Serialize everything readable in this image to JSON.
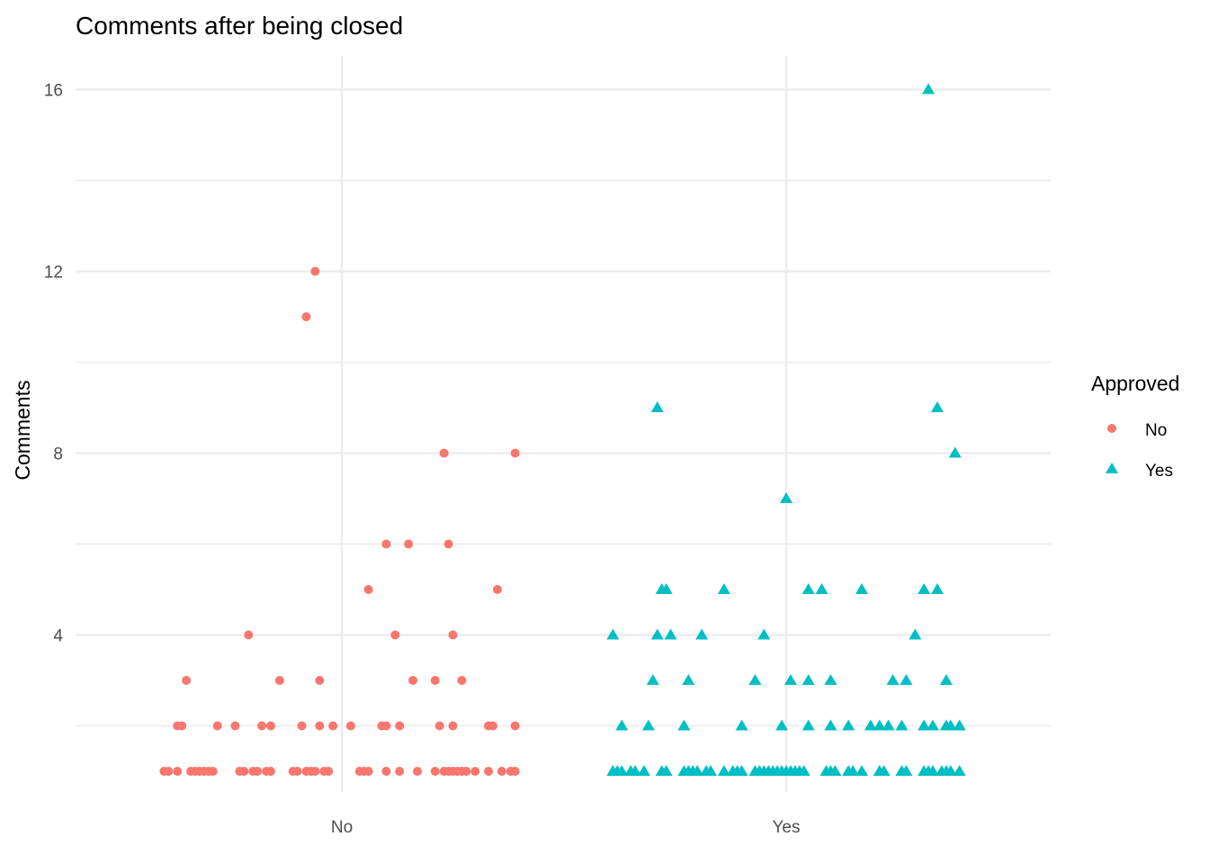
{
  "chart_data": {
    "type": "scatter",
    "title": "Comments after being closed",
    "xlabel": "",
    "ylabel": "Comments",
    "categories": [
      "No",
      "Yes"
    ],
    "ylim": [
      0,
      16.5
    ],
    "yticks": [
      4,
      8,
      12,
      16
    ],
    "grid": true,
    "legend": {
      "title": "Approved",
      "position": "right"
    },
    "series": [
      {
        "name": "No",
        "shape": "circle",
        "color": "#F8766D",
        "points": [
          {
            "x": -0.4,
            "y": 1
          },
          {
            "x": -0.39,
            "y": 1
          },
          {
            "x": -0.37,
            "y": 1
          },
          {
            "x": -0.34,
            "y": 1
          },
          {
            "x": -0.33,
            "y": 1
          },
          {
            "x": -0.32,
            "y": 1
          },
          {
            "x": -0.31,
            "y": 1
          },
          {
            "x": -0.3,
            "y": 1
          },
          {
            "x": -0.29,
            "y": 1
          },
          {
            "x": -0.23,
            "y": 1
          },
          {
            "x": -0.22,
            "y": 1
          },
          {
            "x": -0.2,
            "y": 1
          },
          {
            "x": -0.19,
            "y": 1
          },
          {
            "x": -0.17,
            "y": 1
          },
          {
            "x": -0.16,
            "y": 1
          },
          {
            "x": -0.11,
            "y": 1
          },
          {
            "x": -0.1,
            "y": 1
          },
          {
            "x": -0.08,
            "y": 1
          },
          {
            "x": -0.07,
            "y": 1
          },
          {
            "x": -0.06,
            "y": 1
          },
          {
            "x": -0.04,
            "y": 1
          },
          {
            "x": -0.03,
            "y": 1
          },
          {
            "x": 0.04,
            "y": 1
          },
          {
            "x": 0.05,
            "y": 1
          },
          {
            "x": 0.06,
            "y": 1
          },
          {
            "x": 0.1,
            "y": 1
          },
          {
            "x": 0.13,
            "y": 1
          },
          {
            "x": 0.17,
            "y": 1
          },
          {
            "x": 0.21,
            "y": 1
          },
          {
            "x": 0.23,
            "y": 1
          },
          {
            "x": 0.24,
            "y": 1
          },
          {
            "x": 0.25,
            "y": 1
          },
          {
            "x": 0.26,
            "y": 1
          },
          {
            "x": 0.27,
            "y": 1
          },
          {
            "x": 0.28,
            "y": 1
          },
          {
            "x": 0.3,
            "y": 1
          },
          {
            "x": 0.33,
            "y": 1
          },
          {
            "x": 0.36,
            "y": 1
          },
          {
            "x": 0.38,
            "y": 1
          },
          {
            "x": 0.39,
            "y": 1
          },
          {
            "x": -0.37,
            "y": 2
          },
          {
            "x": -0.36,
            "y": 2
          },
          {
            "x": -0.28,
            "y": 2
          },
          {
            "x": -0.24,
            "y": 2
          },
          {
            "x": -0.18,
            "y": 2
          },
          {
            "x": -0.16,
            "y": 2
          },
          {
            "x": -0.09,
            "y": 2
          },
          {
            "x": -0.05,
            "y": 2
          },
          {
            "x": -0.02,
            "y": 2
          },
          {
            "x": 0.02,
            "y": 2
          },
          {
            "x": 0.09,
            "y": 2
          },
          {
            "x": 0.1,
            "y": 2
          },
          {
            "x": 0.13,
            "y": 2
          },
          {
            "x": 0.22,
            "y": 2
          },
          {
            "x": 0.25,
            "y": 2
          },
          {
            "x": 0.33,
            "y": 2
          },
          {
            "x": 0.34,
            "y": 2
          },
          {
            "x": 0.39,
            "y": 2
          },
          {
            "x": -0.35,
            "y": 3
          },
          {
            "x": -0.14,
            "y": 3
          },
          {
            "x": -0.05,
            "y": 3
          },
          {
            "x": 0.16,
            "y": 3
          },
          {
            "x": 0.21,
            "y": 3
          },
          {
            "x": 0.27,
            "y": 3
          },
          {
            "x": -0.21,
            "y": 4
          },
          {
            "x": 0.12,
            "y": 4
          },
          {
            "x": 0.25,
            "y": 4
          },
          {
            "x": 0.06,
            "y": 5
          },
          {
            "x": 0.35,
            "y": 5
          },
          {
            "x": 0.1,
            "y": 6
          },
          {
            "x": 0.15,
            "y": 6
          },
          {
            "x": 0.24,
            "y": 6
          },
          {
            "x": 0.23,
            "y": 8
          },
          {
            "x": 0.39,
            "y": 8
          },
          {
            "x": -0.08,
            "y": 11
          },
          {
            "x": -0.06,
            "y": 12
          }
        ]
      },
      {
        "name": "Yes",
        "shape": "triangle",
        "color": "#00BFC4",
        "points": [
          {
            "x": -0.39,
            "y": 1
          },
          {
            "x": -0.38,
            "y": 1
          },
          {
            "x": -0.37,
            "y": 1
          },
          {
            "x": -0.35,
            "y": 1
          },
          {
            "x": -0.34,
            "y": 1
          },
          {
            "x": -0.32,
            "y": 1
          },
          {
            "x": -0.28,
            "y": 1
          },
          {
            "x": -0.27,
            "y": 1
          },
          {
            "x": -0.23,
            "y": 1
          },
          {
            "x": -0.22,
            "y": 1
          },
          {
            "x": -0.21,
            "y": 1
          },
          {
            "x": -0.2,
            "y": 1
          },
          {
            "x": -0.18,
            "y": 1
          },
          {
            "x": -0.17,
            "y": 1
          },
          {
            "x": -0.14,
            "y": 1
          },
          {
            "x": -0.12,
            "y": 1
          },
          {
            "x": -0.11,
            "y": 1
          },
          {
            "x": -0.1,
            "y": 1
          },
          {
            "x": -0.07,
            "y": 1
          },
          {
            "x": -0.06,
            "y": 1
          },
          {
            "x": -0.05,
            "y": 1
          },
          {
            "x": -0.04,
            "y": 1
          },
          {
            "x": -0.03,
            "y": 1
          },
          {
            "x": -0.02,
            "y": 1
          },
          {
            "x": -0.01,
            "y": 1
          },
          {
            "x": 0.0,
            "y": 1
          },
          {
            "x": 0.01,
            "y": 1
          },
          {
            "x": 0.02,
            "y": 1
          },
          {
            "x": 0.03,
            "y": 1
          },
          {
            "x": 0.04,
            "y": 1
          },
          {
            "x": 0.09,
            "y": 1
          },
          {
            "x": 0.1,
            "y": 1
          },
          {
            "x": 0.11,
            "y": 1
          },
          {
            "x": 0.14,
            "y": 1
          },
          {
            "x": 0.15,
            "y": 1
          },
          {
            "x": 0.17,
            "y": 1
          },
          {
            "x": 0.21,
            "y": 1
          },
          {
            "x": 0.22,
            "y": 1
          },
          {
            "x": 0.26,
            "y": 1
          },
          {
            "x": 0.27,
            "y": 1
          },
          {
            "x": 0.31,
            "y": 1
          },
          {
            "x": 0.32,
            "y": 1
          },
          {
            "x": 0.33,
            "y": 1
          },
          {
            "x": 0.35,
            "y": 1
          },
          {
            "x": 0.36,
            "y": 1
          },
          {
            "x": 0.37,
            "y": 1
          },
          {
            "x": 0.39,
            "y": 1
          },
          {
            "x": -0.37,
            "y": 2
          },
          {
            "x": -0.31,
            "y": 2
          },
          {
            "x": -0.23,
            "y": 2
          },
          {
            "x": -0.1,
            "y": 2
          },
          {
            "x": -0.01,
            "y": 2
          },
          {
            "x": 0.05,
            "y": 2
          },
          {
            "x": 0.1,
            "y": 2
          },
          {
            "x": 0.14,
            "y": 2
          },
          {
            "x": 0.19,
            "y": 2
          },
          {
            "x": 0.21,
            "y": 2
          },
          {
            "x": 0.23,
            "y": 2
          },
          {
            "x": 0.26,
            "y": 2
          },
          {
            "x": 0.31,
            "y": 2
          },
          {
            "x": 0.33,
            "y": 2
          },
          {
            "x": 0.36,
            "y": 2
          },
          {
            "x": 0.37,
            "y": 2
          },
          {
            "x": 0.39,
            "y": 2
          },
          {
            "x": -0.3,
            "y": 3
          },
          {
            "x": -0.22,
            "y": 3
          },
          {
            "x": -0.07,
            "y": 3
          },
          {
            "x": 0.01,
            "y": 3
          },
          {
            "x": 0.05,
            "y": 3
          },
          {
            "x": 0.1,
            "y": 3
          },
          {
            "x": 0.24,
            "y": 3
          },
          {
            "x": 0.27,
            "y": 3
          },
          {
            "x": 0.36,
            "y": 3
          },
          {
            "x": -0.39,
            "y": 4
          },
          {
            "x": -0.29,
            "y": 4
          },
          {
            "x": -0.26,
            "y": 4
          },
          {
            "x": -0.19,
            "y": 4
          },
          {
            "x": -0.05,
            "y": 4
          },
          {
            "x": 0.29,
            "y": 4
          },
          {
            "x": -0.28,
            "y": 5
          },
          {
            "x": -0.27,
            "y": 5
          },
          {
            "x": -0.14,
            "y": 5
          },
          {
            "x": 0.05,
            "y": 5
          },
          {
            "x": 0.08,
            "y": 5
          },
          {
            "x": 0.17,
            "y": 5
          },
          {
            "x": 0.31,
            "y": 5
          },
          {
            "x": 0.34,
            "y": 5
          },
          {
            "x": 0.0,
            "y": 7
          },
          {
            "x": 0.38,
            "y": 8
          },
          {
            "x": -0.29,
            "y": 9
          },
          {
            "x": 0.34,
            "y": 9
          },
          {
            "x": 0.32,
            "y": 16
          }
        ]
      }
    ]
  }
}
